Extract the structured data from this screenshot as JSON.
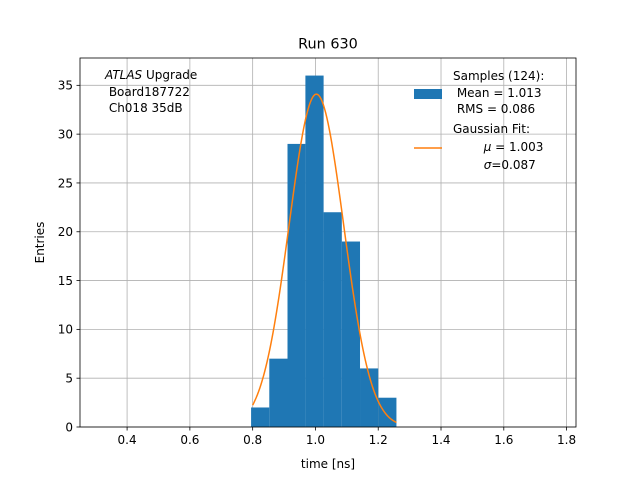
{
  "chart_data": {
    "type": "bar",
    "title": "Run 630",
    "xlabel": "time [ns]",
    "ylabel": "Entries",
    "xlim": [
      0.25,
      1.83
    ],
    "ylim": [
      0,
      37.8
    ],
    "grid": true,
    "legend_position": "top-right",
    "x_ticks": [
      0.4,
      0.6,
      0.8,
      1.0,
      1.2,
      1.4,
      1.6,
      1.8
    ],
    "x_tick_labels": [
      "0.4",
      "0.6",
      "0.8",
      "1.0",
      "1.2",
      "1.4",
      "1.6",
      "1.8"
    ],
    "y_ticks": [
      0,
      5,
      10,
      15,
      20,
      25,
      30,
      35
    ],
    "y_tick_labels": [
      "0",
      "5",
      "10",
      "15",
      "20",
      "25",
      "30",
      "35"
    ],
    "histogram": {
      "bin_edges": [
        0.795,
        0.853,
        0.911,
        0.968,
        1.026,
        1.084,
        1.142,
        1.2,
        1.258
      ],
      "counts": [
        2,
        7,
        29,
        36,
        22,
        19,
        6,
        3
      ],
      "color": "#1f77b4"
    },
    "fit": {
      "type": "gaussian",
      "mu": 1.003,
      "sigma": 0.087,
      "amplitude": 34.1,
      "x_range": [
        0.8,
        1.258
      ],
      "color": "#ff7f0e"
    },
    "annotation": {
      "line1_italic": "ATLAS",
      "line1_rest": " Upgrade",
      "line2": " Board187722",
      "line3": " Ch018 35dB"
    },
    "legend": {
      "hist_lines": [
        "Samples (124):",
        " Mean = 1.013",
        " RMS = 0.086"
      ],
      "fit_title": "Gaussian Fit:",
      "fit_mu_symbol": "μ",
      "fit_mu_value": " = 1.003",
      "fit_sigma_symbol": "σ",
      "fit_sigma_value": "=0.087"
    }
  }
}
